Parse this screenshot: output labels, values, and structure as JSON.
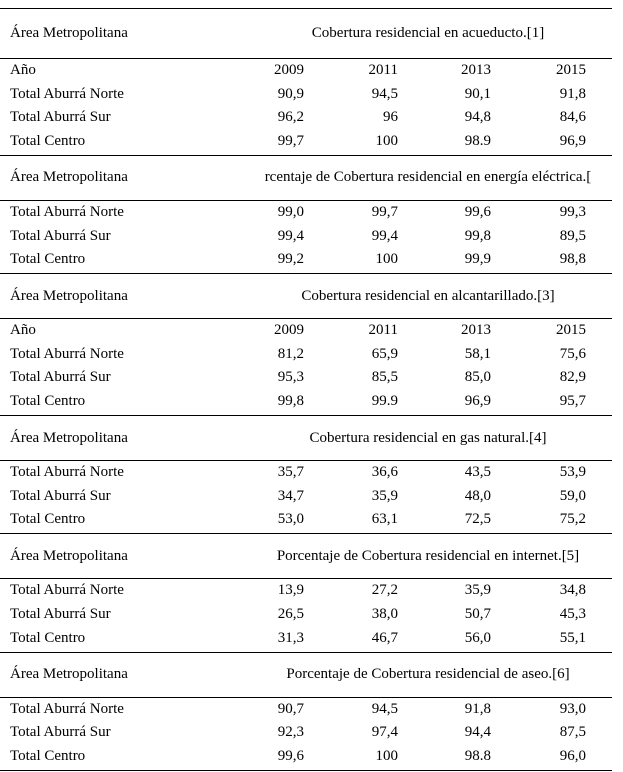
{
  "sections": [
    {
      "region_label": "Área Metropolitana",
      "title": "Cobertura residencial en acueducto.[1]",
      "year_label": "Año",
      "years": [
        "2009",
        "2011",
        "2013",
        "2015"
      ],
      "rows": [
        {
          "label": "Total Aburrá Norte",
          "values": [
            "90,9",
            "94,5",
            "90,1",
            "91,8"
          ]
        },
        {
          "label": "Total Aburrá Sur",
          "values": [
            "96,2",
            "96",
            "94,8",
            "84,6"
          ]
        },
        {
          "label": "Total Centro",
          "values": [
            "99,7",
            "100",
            "98.9",
            "96,9"
          ]
        }
      ]
    },
    {
      "region_label": "Área Metropolitana",
      "title": "rcentaje de Cobertura residencial en energía eléctrica.[",
      "rows": [
        {
          "label": "Total Aburrá Norte",
          "values": [
            "99,0",
            "99,7",
            "99,6",
            "99,3"
          ]
        },
        {
          "label": "Total Aburrá Sur",
          "values": [
            "99,4",
            "99,4",
            "99,8",
            "89,5"
          ]
        },
        {
          "label": "Total Centro",
          "values": [
            "99,2",
            "100",
            "99,9",
            "98,8"
          ]
        }
      ]
    },
    {
      "region_label": "Área Metropolitana",
      "title": "Cobertura residencial en alcantarillado.[3]",
      "year_label": "Año",
      "years": [
        "2009",
        "2011",
        "2013",
        "2015"
      ],
      "rows": [
        {
          "label": "Total Aburrá Norte",
          "values": [
            "81,2",
            "65,9",
            "58,1",
            "75,6"
          ]
        },
        {
          "label": "Total Aburrá Sur",
          "values": [
            "95,3",
            "85,5",
            "85,0",
            "82,9"
          ]
        },
        {
          "label": "Total Centro",
          "values": [
            "99,8",
            "99.9",
            "96,9",
            "95,7"
          ]
        }
      ]
    },
    {
      "region_label": "Área Metropolitana",
      "title": "Cobertura residencial en gas natural.[4]",
      "rows": [
        {
          "label": "Total Aburrá Norte",
          "values": [
            "35,7",
            "36,6",
            "43,5",
            "53,9"
          ]
        },
        {
          "label": "Total Aburrá Sur",
          "values": [
            "34,7",
            "35,9",
            "48,0",
            "59,0"
          ]
        },
        {
          "label": "Total Centro",
          "values": [
            "53,0",
            "63,1",
            "72,5",
            "75,2"
          ]
        }
      ]
    },
    {
      "region_label": "Área Metropolitana",
      "title": "Porcentaje de Cobertura residencial en internet.[5]",
      "rows": [
        {
          "label": "Total Aburrá Norte",
          "values": [
            "13,9",
            "27,2",
            "35,9",
            "34,8"
          ]
        },
        {
          "label": "Total Aburrá Sur",
          "values": [
            "26,5",
            "38,0",
            "50,7",
            "45,3"
          ]
        },
        {
          "label": "Total Centro",
          "values": [
            "31,3",
            "46,7",
            "56,0",
            "55,1"
          ]
        }
      ]
    },
    {
      "region_label": "Área Metropolitana",
      "title": "Porcentaje de Cobertura residencial de aseo.[6]",
      "rows": [
        {
          "label": "Total Aburrá Norte",
          "values": [
            "90,7",
            "94,5",
            "91,8",
            "93,0"
          ]
        },
        {
          "label": "Total Aburrá Sur",
          "values": [
            "92,3",
            "97,4",
            "94,4",
            "87,5"
          ]
        },
        {
          "label": "Total Centro",
          "values": [
            "99,6",
            "100",
            "98.8",
            "96,0"
          ]
        }
      ]
    }
  ]
}
